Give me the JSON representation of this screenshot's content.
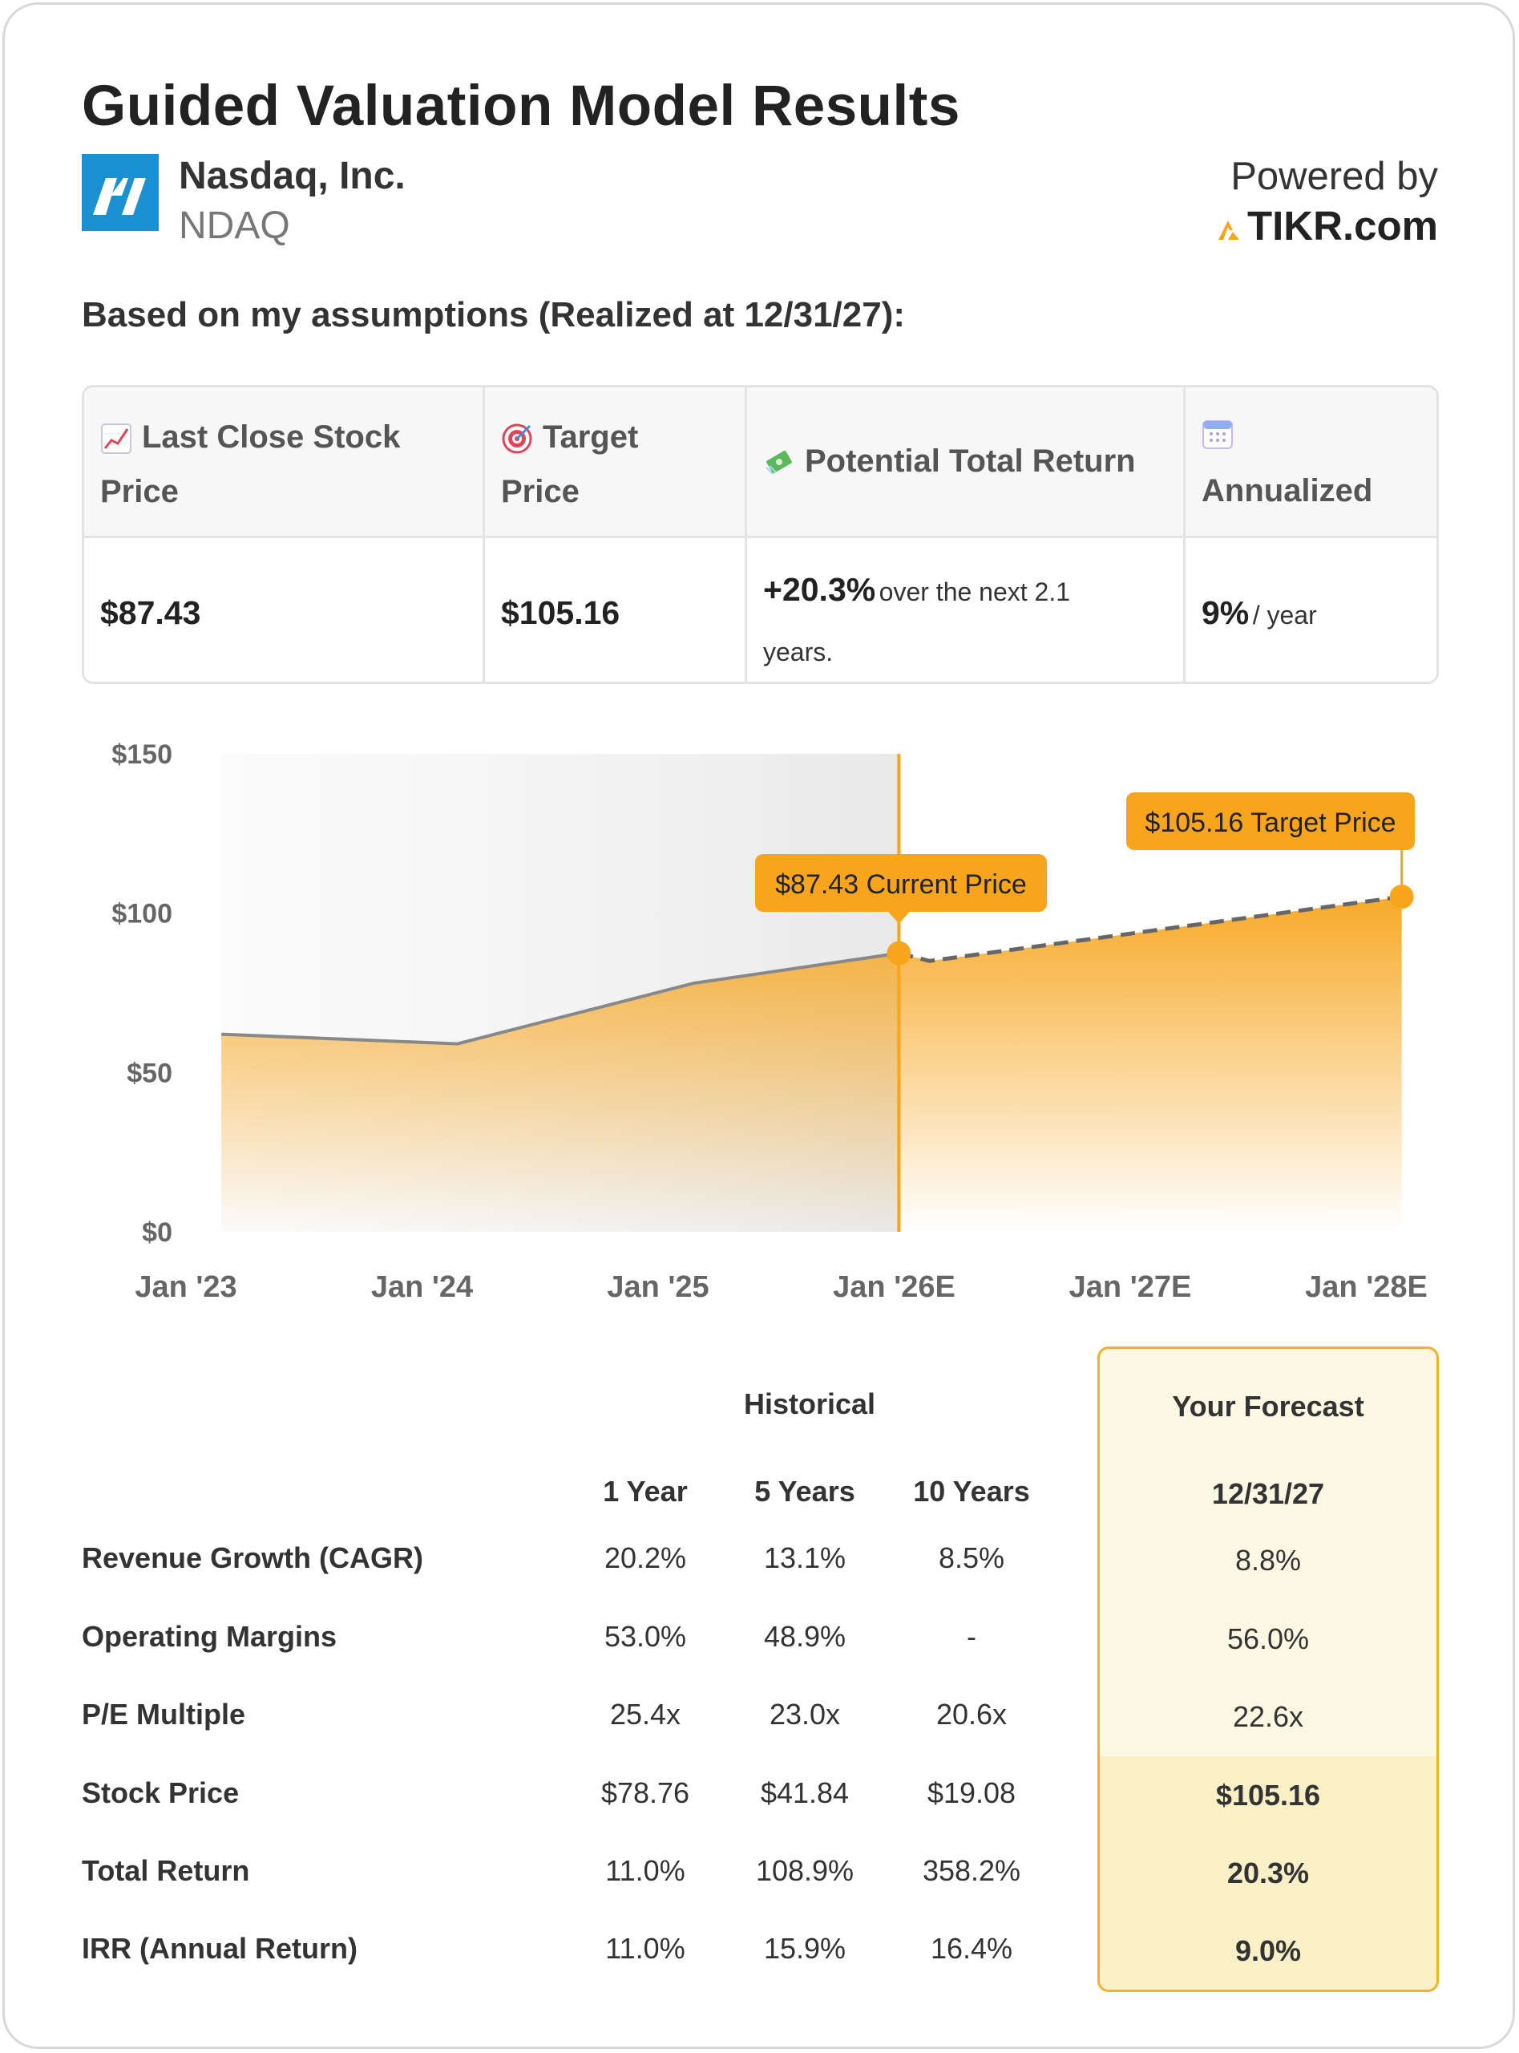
{
  "header": {
    "title": "Guided Valuation Model Results",
    "company_name": "Nasdaq, Inc.",
    "ticker": "NDAQ",
    "powered_by": "Powered by",
    "brand": "TIKR.com"
  },
  "subtitle": "Based on my assumptions (Realized at 12/31/27):",
  "summary": {
    "headers": {
      "last_close": "Last Close Stock Price",
      "target": "Target",
      "target_line2": "Price",
      "potential": "Potential Total Return",
      "annualized": "Annualized"
    },
    "values": {
      "last_close": "$87.43",
      "target": "$105.16",
      "potential_pct": "+20.3%",
      "potential_text": "over the next 2.1 years.",
      "annualized_pct": "9%",
      "annualized_text": "/ year"
    }
  },
  "chart_data": {
    "type": "area",
    "y_ticks": [
      "$150",
      "$100",
      "$50",
      "$0"
    ],
    "ylim": [
      0,
      150
    ],
    "x_ticks": [
      "Jan '23",
      "Jan '24",
      "Jan '25",
      "Jan '26E",
      "Jan '27E",
      "Jan '28E"
    ],
    "historical_series": {
      "name": "Historical Price",
      "points": [
        {
          "x": 0.15,
          "y": 62
        },
        {
          "x": 1.15,
          "y": 59
        },
        {
          "x": 2.15,
          "y": 78
        },
        {
          "x": 3.02,
          "y": 87.43
        }
      ]
    },
    "forecast_series": {
      "name": "Forecast Price",
      "points": [
        {
          "x": 3.02,
          "y": 87.43
        },
        {
          "x": 3.15,
          "y": 85
        },
        {
          "x": 5.15,
          "y": 105.16
        }
      ]
    },
    "current_marker": {
      "x": 3.02,
      "y": 87.43,
      "label": "$87.43 Current Price"
    },
    "target_marker": {
      "x": 5.15,
      "y": 105.16,
      "label": "$105.16 Target Price"
    },
    "colors": {
      "accent": "#f7a51d",
      "line": "#888888",
      "shade": "#ececec"
    }
  },
  "table": {
    "historical_title": "Historical",
    "forecast_title": "Your Forecast",
    "columns": [
      "1 Year",
      "5 Years",
      "10 Years"
    ],
    "forecast_column": "12/31/27",
    "rows": [
      {
        "label": "Revenue Growth (CAGR)",
        "values": [
          "20.2%",
          "13.1%",
          "8.5%"
        ],
        "forecast": "8.8%"
      },
      {
        "label": "Operating Margins",
        "values": [
          "53.0%",
          "48.9%",
          "-"
        ],
        "forecast": "56.0%"
      },
      {
        "label": "P/E Multiple",
        "values": [
          "25.4x",
          "23.0x",
          "20.6x"
        ],
        "forecast": "22.6x"
      },
      {
        "label": "Stock Price",
        "values": [
          "$78.76",
          "$41.84",
          "$19.08"
        ],
        "forecast": "$105.16"
      },
      {
        "label": "Total Return",
        "values": [
          "11.0%",
          "108.9%",
          "358.2%"
        ],
        "forecast": "20.3%"
      },
      {
        "label": "IRR (Annual Return)",
        "values": [
          "11.0%",
          "15.9%",
          "16.4%"
        ],
        "forecast": "9.0%"
      }
    ]
  }
}
